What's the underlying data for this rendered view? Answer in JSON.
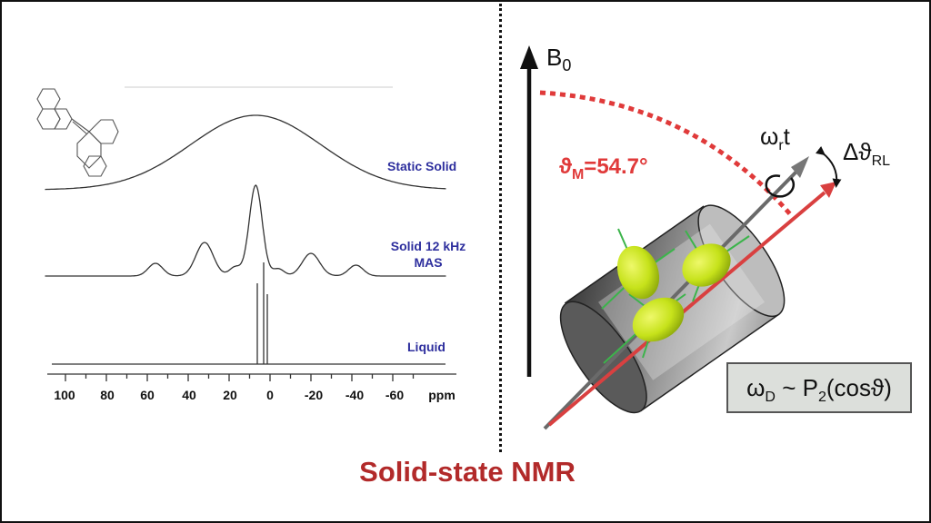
{
  "title": "Solid-state NMR",
  "spectra": {
    "labels": {
      "static": "Static Solid",
      "mas_line1": "Solid 12 kHz",
      "mas_line2": "MAS",
      "liquid": "Liquid"
    },
    "axis": {
      "ticks": [
        "100",
        "80",
        "60",
        "40",
        "20",
        "0",
        "-20",
        "-40",
        "-60"
      ],
      "unit": "ppm",
      "range": [
        110,
        -75
      ]
    }
  },
  "rotor_diagram": {
    "field_label": "B",
    "field_sub": "0",
    "magic_angle": {
      "symbol": "ϑ",
      "sub": "M",
      "value": "=54.7°"
    },
    "rotation": {
      "symbol": "ω",
      "sub": "r",
      "suffix": "t"
    },
    "delta": {
      "symbol": "Δϑ",
      "sub": "RL"
    },
    "formula": {
      "symbol": "ω",
      "sub": "D",
      "rest": " ~ P",
      "sub2": "2",
      "tail": "(cosϑ)"
    },
    "colors": {
      "magic": "#e03a3a",
      "rotor_body": "#777777",
      "ellipsoid": "#c6e21a",
      "spin_vectors": "#3cb44b"
    }
  }
}
